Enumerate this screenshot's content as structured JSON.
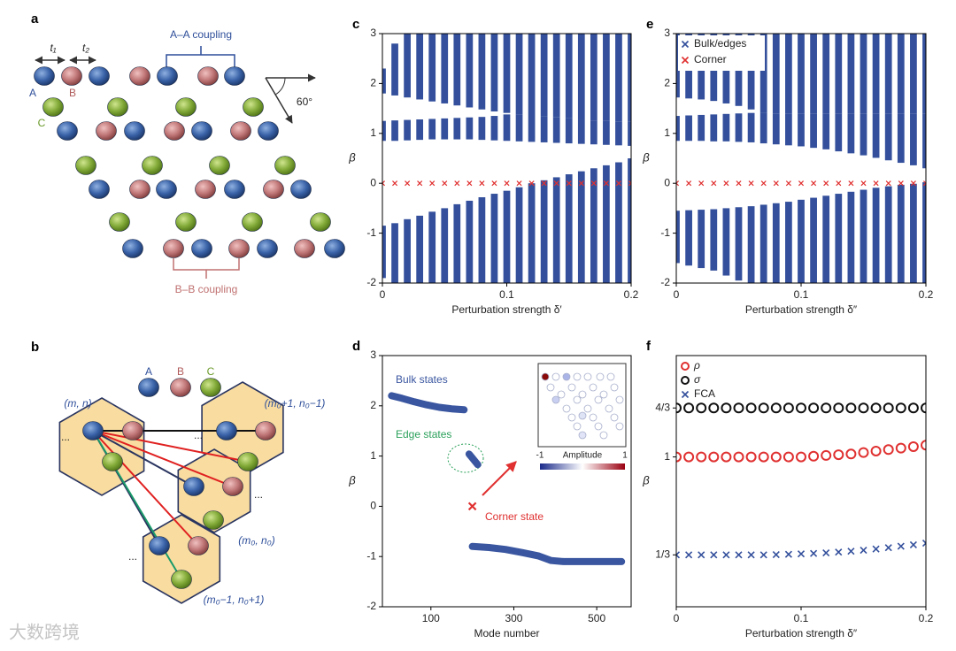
{
  "diagrams": [
    {
      "panel": "a",
      "coupling_top": "A–A coupling",
      "coupling_bottom": "B–B coupling",
      "hoppings": [
        "t₁",
        "t₂"
      ],
      "sites": [
        "A",
        "B",
        "C"
      ],
      "angle": "60°"
    },
    {
      "panel": "b",
      "sites": [
        "A",
        "B",
        "C"
      ],
      "cells": [
        "(m, n)",
        "(m₀+1, n₀−1)",
        "(m₀, n₀)",
        "(m₀−1, n₀+1)"
      ],
      "ellipsis": "..."
    }
  ],
  "watermark": "大数跨境",
  "chart_data": [
    {
      "type": "band",
      "panel": "c",
      "xlabel": "Perturbation strength δ′",
      "ylabel": "β",
      "x": [
        0,
        0.01,
        0.02,
        0.03,
        0.04,
        0.05,
        0.06,
        0.07,
        0.08,
        0.09,
        0.1,
        0.11,
        0.12,
        0.13,
        0.14,
        0.15,
        0.16,
        0.17,
        0.18,
        0.19,
        0.2
      ],
      "xlim": [
        0,
        0.2
      ],
      "xticks": [
        0,
        0.1,
        0.2
      ],
      "ylim": [
        -2,
        3
      ],
      "yticks": [
        -2,
        -1,
        0,
        1,
        2,
        3
      ],
      "series": [
        {
          "color": "#34509c",
          "marker": "stripe",
          "bands": [
            {
              "low": [
                1.8,
                1.76,
                1.72,
                1.68,
                1.64,
                1.6,
                1.56,
                1.52,
                1.48,
                1.44,
                1.41,
                1.38,
                1.36,
                1.34,
                1.32,
                1.3,
                1.28,
                1.26,
                1.25,
                1.24,
                1.23
              ],
              "high": [
                2.3,
                2.8,
                3,
                3,
                3,
                3,
                3,
                3,
                3,
                3,
                3,
                3,
                3,
                3,
                3,
                3,
                3,
                3,
                3,
                3,
                3
              ]
            },
            {
              "low": [
                0.85,
                0.85,
                0.86,
                0.87,
                0.88,
                0.88,
                0.88,
                0.88,
                0.87,
                0.86,
                0.85,
                0.84,
                0.83,
                0.82,
                0.81,
                0.8,
                0.79,
                0.78,
                0.77,
                0.76,
                0.75
              ],
              "high": [
                1.25,
                1.26,
                1.27,
                1.28,
                1.29,
                1.3,
                1.31,
                1.32,
                1.33,
                1.35,
                1.38,
                1.38,
                1.36,
                1.34,
                1.32,
                1.3,
                1.28,
                1.26,
                1.25,
                1.24,
                1.23
              ]
            },
            {
              "low": [
                -1.9,
                -2,
                -2,
                -2,
                -2,
                -2,
                -2,
                -2,
                -2,
                -2,
                -2,
                -2,
                -2,
                -2,
                -2,
                -2,
                -2,
                -2,
                -2,
                -2,
                -2
              ],
              "high": [
                -0.85,
                -0.8,
                -0.72,
                -0.65,
                -0.57,
                -0.5,
                -0.42,
                -0.35,
                -0.28,
                -0.21,
                -0.15,
                -0.08,
                0,
                0.06,
                0.12,
                0.18,
                0.24,
                0.3,
                0.36,
                0.42,
                0.5
              ]
            }
          ]
        },
        {
          "color": "#e03030",
          "marker": "cross",
          "values": [
            0,
            0,
            0,
            0,
            0,
            0,
            0,
            0,
            0,
            0,
            0,
            0,
            0,
            0,
            0,
            0,
            0,
            0,
            0,
            0,
            0
          ]
        }
      ]
    },
    {
      "type": "line",
      "panel": "d",
      "xlabel": "Mode number",
      "ylabel": "β",
      "xlim": [
        -17,
        583
      ],
      "xticks": [
        100,
        300,
        500
      ],
      "ylim": [
        -2,
        3
      ],
      "yticks": [
        -2,
        -1,
        0,
        1,
        2,
        3
      ],
      "series": [
        {
          "color": "#3a56a0",
          "marker": "thick",
          "x": [
            5,
            30,
            60,
            90,
            120,
            150,
            180
          ],
          "values": [
            2.2,
            2.15,
            2.08,
            2.02,
            1.97,
            1.94,
            1.92
          ]
        },
        {
          "color": "#3a56a0",
          "marker": "thick",
          "x": [
            192,
            199,
            206,
            213
          ],
          "values": [
            1.04,
            0.97,
            0.9,
            0.83
          ]
        },
        {
          "color": "#e03030",
          "marker": "cross",
          "x": [
            200
          ],
          "values": [
            0
          ]
        },
        {
          "color": "#3a56a0",
          "marker": "thick",
          "x": [
            200,
            240,
            280,
            320,
            360,
            390,
            420,
            480,
            560
          ],
          "values": [
            -0.8,
            -0.82,
            -0.86,
            -0.92,
            -0.99,
            -1.08,
            -1.1,
            -1.1,
            -1.1
          ]
        }
      ],
      "annotations": [
        {
          "text": "Bulk states",
          "color": "#3a56a0"
        },
        {
          "text": "Edge states",
          "color": "#2aa05a"
        },
        {
          "text": "Corner state",
          "color": "#e03030"
        }
      ],
      "inset": {
        "colorbar_label": "Amplitude",
        "colorbar_ticks": [
          -1,
          1
        ]
      }
    },
    {
      "type": "band",
      "panel": "e",
      "xlabel": "Perturbation strength δ″",
      "ylabel": "β",
      "x": [
        0,
        0.01,
        0.02,
        0.03,
        0.04,
        0.05,
        0.06,
        0.07,
        0.08,
        0.09,
        0.1,
        0.11,
        0.12,
        0.13,
        0.14,
        0.15,
        0.16,
        0.17,
        0.18,
        0.19,
        0.2
      ],
      "xlim": [
        0,
        0.2
      ],
      "xticks": [
        0,
        0.1,
        0.2
      ],
      "ylim": [
        -2,
        3
      ],
      "yticks": [
        -2,
        -1,
        0,
        1,
        2,
        3
      ],
      "legend": "upper left",
      "series": [
        {
          "name": "Bulk/edges",
          "color": "#34509c",
          "marker": "stripe",
          "bands": [
            {
              "low": [
                1.72,
                1.7,
                1.68,
                1.65,
                1.6,
                1.55,
                1.48,
                1.42,
                1.4,
                1.4,
                1.4,
                1.4,
                1.4,
                1.4,
                1.4,
                1.4,
                1.4,
                1.4,
                1.4,
                1.4,
                1.4
              ],
              "high": [
                3,
                3,
                3,
                3,
                3,
                3,
                3,
                3,
                3,
                3,
                3,
                3,
                3,
                3,
                3,
                3,
                3,
                3,
                3,
                3,
                3
              ]
            },
            {
              "low": [
                0.85,
                0.85,
                0.85,
                0.84,
                0.84,
                0.83,
                0.82,
                0.8,
                0.78,
                0.76,
                0.74,
                0.71,
                0.68,
                0.64,
                0.6,
                0.56,
                0.51,
                0.46,
                0.41,
                0.36,
                0.3
              ],
              "high": [
                1.35,
                1.36,
                1.37,
                1.38,
                1.39,
                1.4,
                1.41,
                1.42,
                1.4,
                1.4,
                1.4,
                1.4,
                1.4,
                1.4,
                1.4,
                1.4,
                1.4,
                1.4,
                1.4,
                1.4,
                1.4
              ]
            },
            {
              "low": [
                -1.6,
                -1.65,
                -1.7,
                -1.75,
                -1.85,
                -1.95,
                -2,
                -2,
                -2,
                -2,
                -2,
                -2,
                -2,
                -2,
                -2,
                -2,
                -2,
                -2,
                -2,
                -2,
                -2
              ],
              "high": [
                -0.55,
                -0.54,
                -0.53,
                -0.52,
                -0.5,
                -0.48,
                -0.46,
                -0.43,
                -0.4,
                -0.37,
                -0.33,
                -0.29,
                -0.25,
                -0.21,
                -0.17,
                -0.13,
                -0.09,
                -0.06,
                -0.03,
                -0.01,
                0.02
              ]
            }
          ]
        },
        {
          "name": "Corner",
          "color": "#e03030",
          "marker": "cross",
          "values": [
            0,
            0,
            0,
            0,
            0,
            0,
            0,
            0,
            0,
            0,
            0,
            0,
            0,
            0,
            0,
            0,
            0,
            0,
            0,
            0,
            0
          ]
        }
      ]
    },
    {
      "type": "scatter",
      "panel": "f",
      "xlabel": "Perturbation strength δ″",
      "ylabel": "β",
      "x": [
        0,
        0.01,
        0.02,
        0.03,
        0.04,
        0.05,
        0.06,
        0.07,
        0.08,
        0.09,
        0.1,
        0.11,
        0.12,
        0.13,
        0.14,
        0.15,
        0.16,
        0.17,
        0.18,
        0.19,
        0.2
      ],
      "xlim": [
        0,
        0.2
      ],
      "xticks": [
        0,
        0.1,
        0.2
      ],
      "ylim": [
        -0.02,
        1.69
      ],
      "yticks": [
        {
          "value": 0.3333,
          "label": "1/3"
        },
        1,
        {
          "value": 1.3333,
          "label": "4/3"
        }
      ],
      "legend": "upper left",
      "series": [
        {
          "name": "ρ",
          "color": "#e03030",
          "marker": "circle",
          "values": [
            1,
            1,
            1,
            1,
            1,
            1,
            1,
            1,
            1,
            1,
            1,
            1.005,
            1.01,
            1.015,
            1.02,
            1.03,
            1.04,
            1.05,
            1.06,
            1.07,
            1.08
          ]
        },
        {
          "name": "σ",
          "color": "#111111",
          "marker": "circle",
          "values": [
            1.3333,
            1.3333,
            1.3333,
            1.3333,
            1.3333,
            1.3333,
            1.3333,
            1.3333,
            1.3333,
            1.3333,
            1.3333,
            1.3333,
            1.3333,
            1.3333,
            1.3333,
            1.3333,
            1.3333,
            1.3333,
            1.3333,
            1.3333,
            1.3333
          ]
        },
        {
          "name": "FCA",
          "color": "#34509c",
          "marker": "cross",
          "values": [
            0.3333,
            0.3333,
            0.3333,
            0.3333,
            0.3333,
            0.3333,
            0.3333,
            0.3333,
            0.335,
            0.337,
            0.34,
            0.343,
            0.347,
            0.352,
            0.358,
            0.365,
            0.373,
            0.382,
            0.392,
            0.402,
            0.413
          ]
        }
      ]
    }
  ]
}
